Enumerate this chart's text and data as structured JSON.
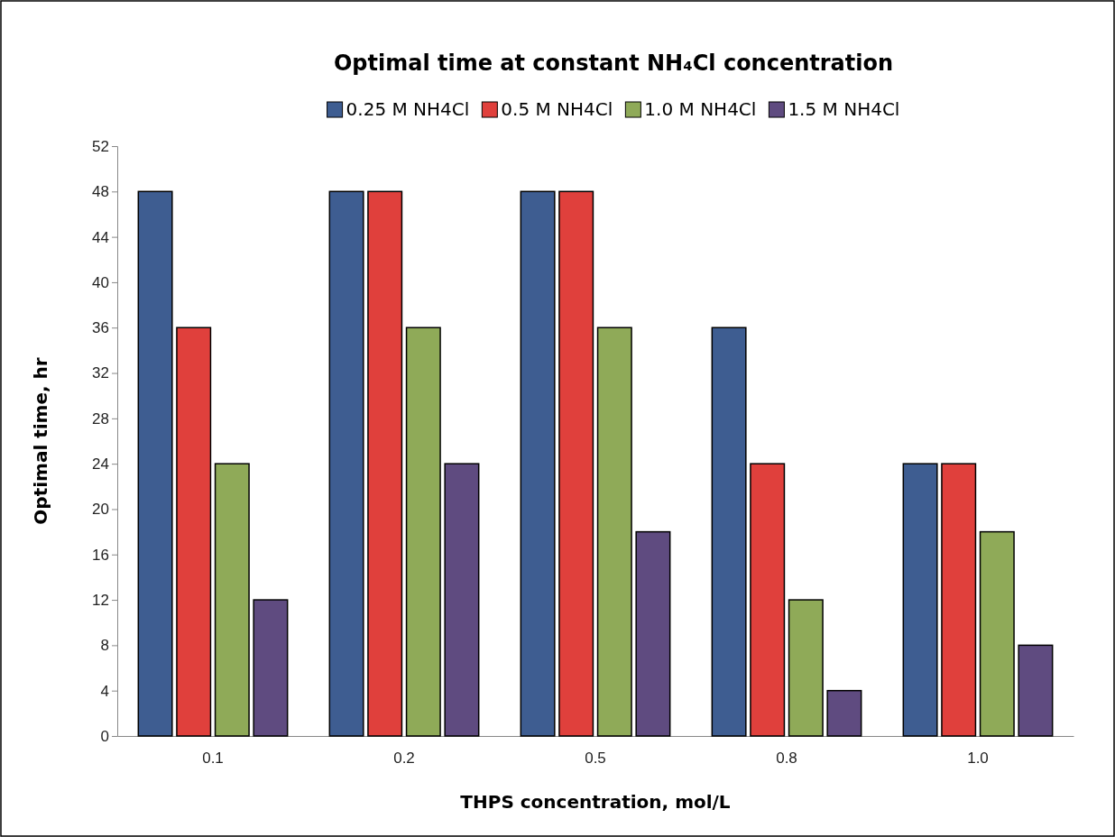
{
  "chart_data": {
    "type": "bar",
    "title": "Optimal time at constant NH₄Cl concentration",
    "xlabel": "THPS concentration, mol/L",
    "ylabel": "Optimal time, hr",
    "categories": [
      "0.1",
      "0.2",
      "0.5",
      "0.8",
      "1.0"
    ],
    "series": [
      {
        "name": "0.25 M NH4Cl",
        "color": "#3e5d91",
        "values": [
          48,
          48,
          48,
          36,
          24
        ]
      },
      {
        "name": "0.5 M NH4Cl",
        "color": "#e0403c",
        "values": [
          36,
          48,
          48,
          24,
          24
        ]
      },
      {
        "name": "1.0 M NH4Cl",
        "color": "#8faa58",
        "values": [
          24,
          36,
          36,
          12,
          18
        ]
      },
      {
        "name": "1.5 M NH4Cl",
        "color": "#5f4b80",
        "values": [
          12,
          24,
          18,
          4,
          8
        ]
      }
    ],
    "ylim": [
      0,
      52
    ],
    "yticks": [
      0,
      4,
      8,
      12,
      16,
      20,
      24,
      28,
      32,
      36,
      40,
      44,
      48,
      52
    ],
    "grid": false,
    "legend": "top"
  }
}
